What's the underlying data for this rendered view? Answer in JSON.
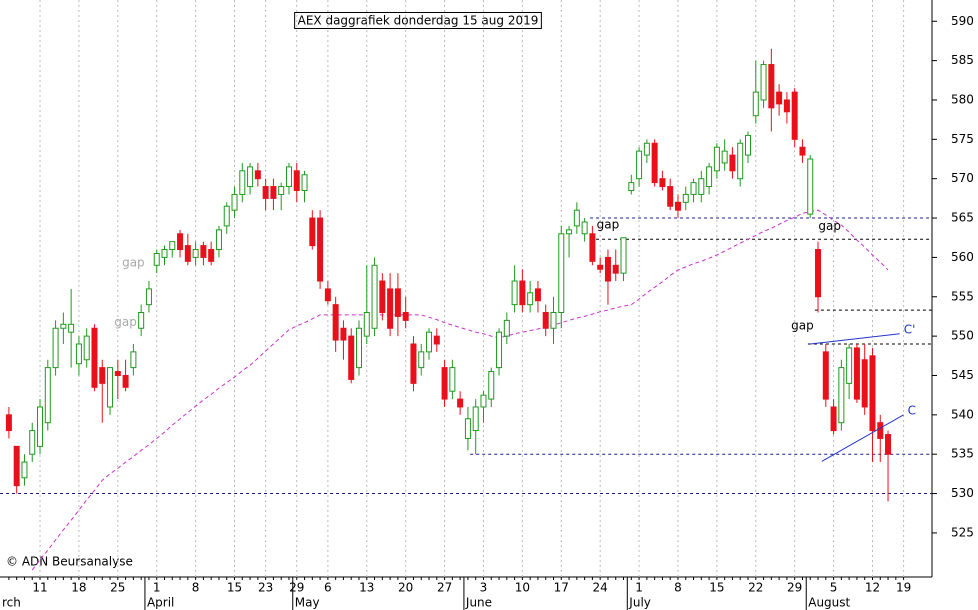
{
  "chart_data": {
    "type": "candlestick",
    "title": "AEX daggrafiek donderdag 15 aug 2019",
    "credit": "© ADN Beursanalyse",
    "categories": [
      null,
      null,
      null,
      null,
      "11",
      null,
      null,
      null,
      null,
      "18",
      null,
      null,
      null,
      null,
      "25",
      null,
      null,
      null,
      null,
      "1",
      null,
      null,
      null,
      null,
      "8",
      null,
      null,
      null,
      null,
      "15",
      null,
      null,
      null,
      "23",
      null,
      null,
      null,
      "29",
      null,
      null,
      null,
      "6",
      null,
      null,
      null,
      null,
      "13",
      null,
      null,
      null,
      null,
      "20",
      null,
      null,
      null,
      null,
      "27",
      null,
      null,
      null,
      null,
      "3",
      null,
      null,
      null,
      null,
      "10",
      null,
      null,
      null,
      null,
      "17",
      null,
      null,
      null,
      null,
      "24",
      null,
      null,
      null,
      null,
      "1",
      null,
      null,
      null,
      null,
      "8",
      null,
      null,
      null,
      null,
      "15",
      null,
      null,
      null,
      null,
      "22",
      null,
      null,
      null,
      null,
      "29",
      null,
      null,
      null,
      null,
      "5",
      null,
      null,
      null,
      null,
      "12",
      null,
      null,
      null,
      "19"
    ],
    "months": [
      "rch",
      null,
      null,
      null,
      null,
      null,
      null,
      null,
      null,
      null,
      null,
      null,
      null,
      null,
      null,
      null,
      null,
      null,
      "April",
      null,
      null,
      null,
      null,
      null,
      null,
      null,
      null,
      null,
      null,
      null,
      null,
      null,
      null,
      null,
      null,
      null,
      null,
      "May",
      null,
      null,
      null,
      null,
      null,
      null,
      null,
      null,
      null,
      null,
      null,
      null,
      null,
      null,
      null,
      null,
      null,
      null,
      null,
      null,
      null,
      "June",
      null,
      null,
      null,
      null,
      null,
      null,
      null,
      null,
      null,
      null,
      null,
      null,
      null,
      null,
      null,
      null,
      null,
      null,
      null,
      null,
      "July",
      null,
      null,
      null,
      null,
      null,
      null,
      null,
      null,
      null,
      null,
      null,
      null,
      null,
      null,
      null,
      null,
      null,
      null,
      null,
      null,
      null,
      null,
      "August",
      null,
      null,
      null,
      null,
      null,
      null,
      null,
      null,
      null,
      null,
      null,
      null
    ],
    "open": [
      540,
      536,
      532,
      535,
      536,
      539,
      546,
      551,
      550.5,
      546.5,
      547,
      551,
      546,
      541,
      545.5,
      545,
      546,
      551,
      554,
      559,
      560,
      561,
      563,
      561.5,
      560,
      561.5,
      561,
      561,
      564,
      566,
      568,
      569,
      571,
      569,
      569,
      568,
      569,
      571,
      568.5,
      565,
      565,
      556,
      554,
      551,
      550,
      546,
      550,
      551,
      557,
      556,
      556,
      553,
      549,
      546,
      548,
      550,
      546,
      543,
      542,
      537,
      538,
      541,
      542,
      546,
      550,
      554,
      557,
      554,
      556,
      553,
      551,
      553,
      563,
      564,
      563,
      563,
      559,
      560,
      559,
      558,
      568.5,
      570,
      573,
      574.5,
      570,
      569,
      567,
      567,
      568,
      568,
      569,
      571,
      572,
      573,
      570,
      573,
      578,
      580,
      584.5,
      581,
      580,
      581,
      574,
      565.5,
      561,
      548,
      541,
      539,
      544,
      548.5,
      547,
      547.5,
      539,
      537.5,
      null,
      null
    ],
    "high": [
      541,
      536,
      535,
      539,
      542,
      547,
      552,
      553,
      556,
      550,
      551,
      551.5,
      547,
      546,
      547,
      547,
      549,
      554,
      557,
      561,
      561.5,
      562,
      563.5,
      563,
      562,
      562,
      562,
      564,
      567,
      569,
      572,
      572,
      572,
      570,
      570,
      569.5,
      572,
      572,
      571,
      566,
      566,
      557,
      555,
      552,
      551,
      552,
      559,
      560,
      558,
      558,
      558,
      555,
      550,
      549,
      551,
      551,
      547,
      547,
      543,
      541,
      542,
      543,
      546,
      551,
      553,
      559,
      558.5,
      557,
      557,
      554,
      555,
      564,
      564,
      567,
      565,
      564,
      560,
      561,
      561,
      562.5,
      570.5,
      574,
      575,
      575,
      571,
      570,
      568,
      569,
      570,
      571,
      572,
      574.5,
      575,
      574,
      575,
      576,
      585,
      585,
      586.5,
      582,
      581,
      581.5,
      575,
      573,
      562,
      549,
      542,
      547,
      549,
      549,
      549,
      548.5,
      540,
      538,
      null,
      null
    ],
    "low": [
      537,
      530,
      531,
      534,
      535,
      538,
      545,
      549,
      546,
      545,
      546,
      543,
      539,
      540,
      542,
      543,
      545,
      550,
      553,
      558,
      559,
      560,
      560,
      559,
      559,
      559,
      559,
      560,
      563,
      565,
      567,
      568,
      569,
      566,
      566,
      566,
      568,
      567,
      567,
      561,
      556,
      554,
      548,
      547,
      544,
      545,
      549,
      550,
      552,
      550,
      550,
      551,
      543,
      545,
      547,
      548,
      541,
      542,
      540,
      535.5,
      535,
      539,
      541,
      545,
      549,
      553,
      553,
      553,
      553,
      550,
      549,
      551,
      560,
      563,
      562,
      559,
      558,
      554,
      557,
      557,
      568,
      569,
      572,
      569,
      568.5,
      566,
      565,
      566,
      567,
      567,
      568,
      570,
      571,
      570,
      569,
      572,
      577,
      579,
      576,
      578,
      577,
      574,
      572,
      565,
      553,
      541,
      537.5,
      538,
      542,
      541.5,
      540,
      534,
      534,
      529,
      null,
      null
    ],
    "close": [
      538,
      531,
      534,
      538,
      541,
      546,
      551,
      551.5,
      551.5,
      549,
      550,
      543.5,
      544,
      546,
      545,
      543.5,
      548,
      553,
      556,
      560.5,
      561,
      562,
      561,
      559.5,
      561,
      560,
      559.5,
      563.5,
      566.5,
      568,
      571,
      571.5,
      570,
      567.5,
      567.5,
      569,
      571.5,
      568.5,
      570.5,
      561.5,
      557,
      554.5,
      549.5,
      549.5,
      544.5,
      551,
      553,
      559,
      553,
      551,
      552.5,
      552,
      544,
      548,
      550.5,
      549,
      542,
      546,
      541,
      539.5,
      541,
      542.5,
      545.5,
      550.5,
      552,
      557,
      554,
      555.5,
      554.5,
      551,
      553,
      563,
      563.5,
      566,
      564.5,
      559.5,
      558.5,
      557,
      558,
      562.5,
      569.5,
      573.5,
      574.5,
      569.5,
      569,
      566.5,
      566,
      568,
      569.5,
      570,
      571.5,
      574,
      573.5,
      571,
      574.5,
      575.5,
      581,
      584.5,
      579,
      579.5,
      578.5,
      575,
      573,
      572.5,
      555,
      542,
      538,
      546,
      548.5,
      542,
      541,
      538,
      537,
      535,
      null,
      null
    ],
    "up_color": "#1f9a1f",
    "down_color": "#e8101a",
    "moving_average": {
      "color": "#cc33cc",
      "values": [
        null,
        null,
        null,
        520.3,
        521.6,
        522.8,
        524.1,
        525.4,
        526.6,
        527.9,
        529.2,
        530.4,
        531.7,
        532.5,
        533.2,
        534,
        534.7,
        535.5,
        536.2,
        537,
        537.8,
        538.7,
        539.5,
        540.3,
        541.1,
        541.9,
        542.6,
        543.4,
        544.1,
        544.8,
        545.6,
        546.3,
        547.2,
        548.1,
        549,
        549.9,
        550.8,
        551.3,
        551.7,
        552.2,
        552.7,
        552.7,
        552.7,
        552.7,
        552.7,
        552.7,
        552.7,
        552.7,
        552.7,
        552.7,
        552.7,
        552.7,
        552.7,
        552.7,
        552.4,
        552.1,
        551.7,
        551.4,
        551.1,
        550.8,
        550.5,
        550.3,
        550,
        549.8,
        550,
        550.3,
        550.5,
        550.7,
        550.9,
        551.2,
        551.4,
        551.7,
        552,
        552.3,
        552.5,
        552.8,
        553.1,
        553.3,
        553.6,
        553.8,
        554,
        554.7,
        555.5,
        556.2,
        556.9,
        557.7,
        558.4,
        558.8,
        559.2,
        559.5,
        559.9,
        560.3,
        560.8,
        561.3,
        561.8,
        562.3,
        562.8,
        563.3,
        563.7,
        564.2,
        564.7,
        565.1,
        565.6,
        565.8,
        566,
        565.4,
        564.7,
        564.1,
        563.2,
        562.2,
        561.3,
        560.3,
        559.4,
        558.4,
        null,
        null
      ]
    },
    "hlines": [
      {
        "value": 565,
        "x0": 74.7,
        "color": "#1a1a8c"
      },
      {
        "value": 562.3,
        "x0": 74.7,
        "color": "#000000"
      },
      {
        "value": 553.3,
        "x0": 103.6,
        "color": "#000000"
      },
      {
        "value": 549,
        "x0": 102.7,
        "color": "#000000"
      },
      {
        "value": 535,
        "x0": 59.3,
        "color": "#1a1a8c"
      },
      {
        "value": 530,
        "x0": -1.14,
        "color": "#1a1a8c"
      }
    ],
    "trendlines": [
      {
        "label": "C'",
        "x": [
          103,
          114.5
        ],
        "y": [
          549,
          550.3
        ],
        "color": "#2233cc"
      },
      {
        "label": "C",
        "x": [
          104.5,
          115
        ],
        "y": [
          534.1,
          540
        ],
        "color": "#2233cc"
      }
    ],
    "annotations": [
      {
        "text": "gap",
        "x": 77,
        "y": 564.1,
        "color": "#000000"
      },
      {
        "text": "gap",
        "x": 105.5,
        "y": 563.9,
        "color": "#000000"
      },
      {
        "text": "gap",
        "x": 102,
        "y": 551.3,
        "color": "#000000"
      },
      {
        "text": "gap",
        "x": 16,
        "y": 559.3,
        "color": "#aaaaaa"
      },
      {
        "text": "gap",
        "x": 15,
        "y": 551.7,
        "color": "#aaaaaa"
      }
    ],
    "ylim": [
      519.4,
      592.7
    ],
    "yticks": [
      525,
      530,
      535,
      540,
      545,
      550,
      555,
      560,
      565,
      570,
      575,
      580,
      585,
      590
    ]
  }
}
